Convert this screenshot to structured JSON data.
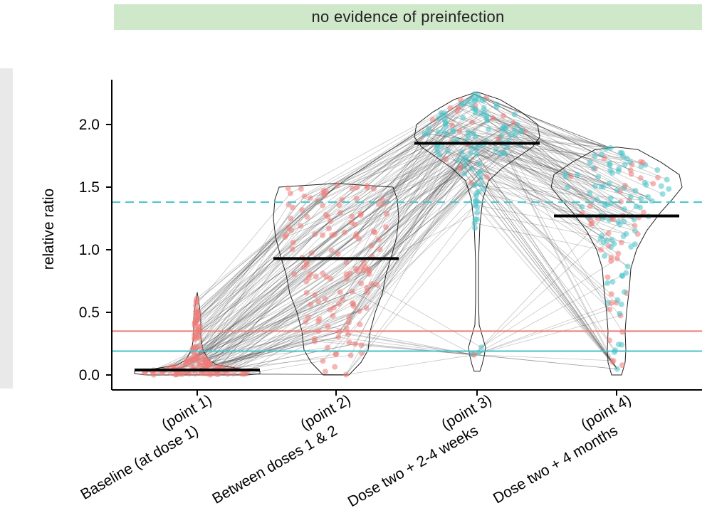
{
  "facet_label": "no evidence of preinfection",
  "colors": {
    "red": "#ec7c78",
    "cyan": "#48c2c9",
    "line": "#333333",
    "median": "#000000"
  },
  "chart_data": {
    "type": "violin",
    "title": "",
    "xlabel": "",
    "ylabel": "relative ratio",
    "ylim": [
      0,
      2.3
    ],
    "yticks": [
      "0.0",
      "0.5",
      "1.0",
      "1.5",
      "2.0"
    ],
    "ytick_values": [
      0,
      0.5,
      1.0,
      1.5,
      2.0
    ],
    "categories": [
      [
        "Baseline (at dose 1)",
        "(point 1)"
      ],
      [
        "Between doses 1 & 2",
        "(point 2)"
      ],
      [
        "Dose two + 2-4 weeks",
        "(point 3)"
      ],
      [
        "Dose two + 4 months",
        "(point 4)"
      ]
    ],
    "medians": [
      0.04,
      0.93,
      1.85,
      1.27
    ],
    "ranges": [
      [
        0.0,
        0.66
      ],
      [
        0.0,
        1.53
      ],
      [
        0.03,
        2.26
      ],
      [
        0.0,
        1.82
      ]
    ],
    "reference_lines": [
      {
        "value": 1.38,
        "color": "cyan",
        "style": "dashed"
      },
      {
        "value": 0.35,
        "color": "red",
        "style": "solid"
      },
      {
        "value": 0.19,
        "color": "cyan",
        "style": "solid"
      }
    ],
    "grid": false
  }
}
